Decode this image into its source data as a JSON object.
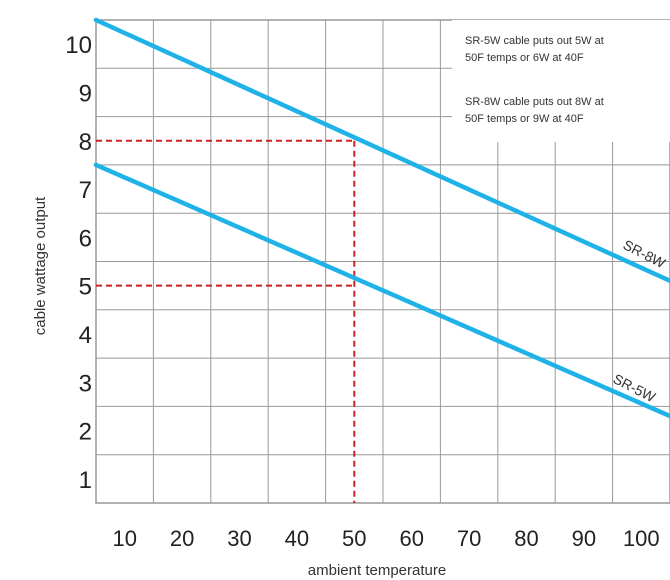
{
  "chart_data": {
    "type": "line",
    "xlabel": "ambient temperature",
    "ylabel": "cable wattage output",
    "xlim": [
      5,
      105
    ],
    "ylim": [
      0.5,
      10.5
    ],
    "x_ticks": [
      10,
      20,
      30,
      40,
      50,
      60,
      70,
      80,
      90,
      100
    ],
    "x_tick_labels": [
      "10",
      "20",
      "30",
      "40",
      "50",
      "60",
      "70",
      "80",
      "90",
      "100"
    ],
    "y_ticks": [
      1,
      2,
      3,
      4,
      5,
      6,
      7,
      8,
      9,
      10
    ],
    "y_tick_labels": [
      "1",
      "2",
      "3",
      "4",
      "5",
      "6",
      "7",
      "8",
      "9",
      "10"
    ],
    "grid": true,
    "series": [
      {
        "name": "SR-8W",
        "x": [
          5,
          105
        ],
        "y": [
          10.5,
          5.1
        ]
      },
      {
        "name": "SR-5W",
        "x": [
          5,
          105
        ],
        "y": [
          7.5,
          2.3
        ]
      }
    ],
    "reference_lines": [
      {
        "x": 50,
        "y": 8
      },
      {
        "x": 50,
        "y": 5
      }
    ],
    "annotations": [
      "SR-5W cable puts out 5W at",
      "50F temps or 6W at 40F",
      "SR-8W cable puts out 8W at",
      "50F temps or 9W at 40F"
    ],
    "colors": {
      "series": "#1fb2e8",
      "reference": "#cc2222",
      "grid": "#999999"
    }
  }
}
